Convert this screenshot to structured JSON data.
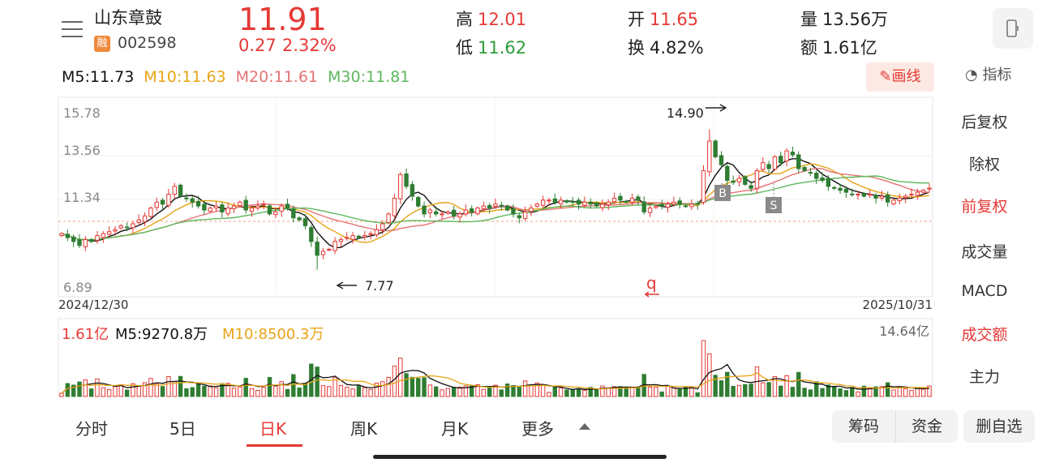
{
  "header": {
    "stock_name": "山东章鼓",
    "badge": "融",
    "stock_code": "002598",
    "price": "11.91",
    "change": "0.27",
    "change_pct": "2.32%",
    "high_label": "高",
    "high_value": "12.01",
    "low_label": "低",
    "low_value": "11.62",
    "open_label": "开",
    "open_value": "11.65",
    "turnover_label": "换",
    "turnover_value": "4.82%",
    "volume_label": "量",
    "volume_value": "13.56万",
    "amount_label": "额",
    "amount_value": "1.61亿"
  },
  "ma_legend": {
    "m5": "M5:11.73",
    "m10": "M10:11.63",
    "m20": "M20:11.61",
    "m30": "M30:11.81"
  },
  "toolbar": {
    "draw_label": "画线",
    "indicator_label": "指标"
  },
  "right_panel": {
    "items": [
      "后复权",
      "除权",
      "前复权",
      "成交量",
      "MACD",
      "成交额",
      "主力"
    ],
    "active": [
      "前复权",
      "成交额"
    ]
  },
  "tabs": {
    "items": [
      "分时",
      "5日",
      "日K",
      "周K",
      "月K",
      "更多"
    ],
    "active": "日K"
  },
  "actions": {
    "chips": "筹码",
    "funds": "资金",
    "remove_watch": "删自选"
  },
  "colors": {
    "up": "#e53935",
    "down": "#2e7d32",
    "m5": "#111111",
    "m10": "#e8a317",
    "m20": "#e57373",
    "m30": "#5cb85c"
  },
  "chart_data": [
    {
      "type": "candlestick",
      "y_ticks": [
        "15.78",
        "13.56",
        "11.34",
        "6.89"
      ],
      "ylim": [
        6.89,
        15.78
      ],
      "x_start_label": "2024/12/30",
      "x_end_label": "2025/10/31",
      "max_annotation": {
        "label": "14.90",
        "value": 14.9
      },
      "min_annotation": {
        "label": "7.77",
        "value": 7.77
      },
      "reference_price": 10.3,
      "markers": [
        {
          "label": "B",
          "value": 11.5
        },
        {
          "label": "S",
          "value": 10.9
        }
      ],
      "footer_glyph": "q",
      "closes": [
        9.6,
        9.4,
        9.2,
        9.0,
        9.3,
        9.2,
        9.5,
        9.6,
        9.7,
        9.8,
        10.0,
        9.9,
        10.1,
        10.3,
        10.5,
        10.9,
        11.2,
        11.1,
        11.6,
        12.0,
        11.5,
        11.4,
        11.2,
        11.0,
        10.8,
        10.9,
        11.0,
        10.7,
        10.9,
        11.0,
        11.2,
        10.8,
        10.9,
        11.0,
        11.1,
        10.6,
        10.7,
        11.0,
        10.9,
        10.4,
        10.3,
        10.0,
        9.2,
        8.5,
        8.7,
        8.8,
        9.2,
        9.3,
        9.4,
        9.5,
        9.4,
        9.5,
        9.6,
        9.8,
        10.1,
        10.6,
        11.4,
        12.6,
        12.0,
        11.5,
        11.0,
        10.6,
        10.8,
        10.6,
        10.6,
        10.7,
        10.5,
        10.6,
        10.8,
        10.7,
        10.9,
        11.0,
        10.9,
        11.1,
        11.0,
        10.8,
        10.6,
        10.4,
        10.7,
        10.9,
        11.1,
        11.3,
        11.3,
        11.2,
        11.3,
        11.2,
        11.2,
        11.1,
        11.2,
        11.1,
        11.0,
        11.1,
        11.2,
        11.4,
        11.3,
        11.2,
        11.4,
        11.3,
        10.7,
        10.9,
        11.0,
        11.0,
        11.1,
        11.2,
        11.1,
        11.0,
        11.1,
        11.1,
        12.8,
        14.3,
        13.5,
        13.1,
        12.3,
        12.2,
        12.4,
        12.1,
        11.9,
        12.8,
        13.2,
        12.9,
        13.5,
        13.2,
        13.8,
        13.6,
        12.9,
        12.8,
        12.7,
        12.4,
        12.3,
        12.0,
        11.9,
        11.8,
        11.7,
        11.6,
        11.6,
        11.5,
        11.6,
        11.4,
        11.5,
        11.2,
        11.3,
        11.4,
        11.5,
        11.6,
        11.7,
        11.8,
        11.91
      ],
      "ma_visible": [
        "M5",
        "M10",
        "M20",
        "M30"
      ]
    },
    {
      "type": "bar",
      "series_name": "成交额",
      "legend": {
        "current": "1.61亿",
        "m5": "M5:9270.8万",
        "m10": "M10:8500.3万"
      },
      "y_max_label": "14.64亿",
      "ylim": [
        0,
        14.64
      ]
    }
  ]
}
